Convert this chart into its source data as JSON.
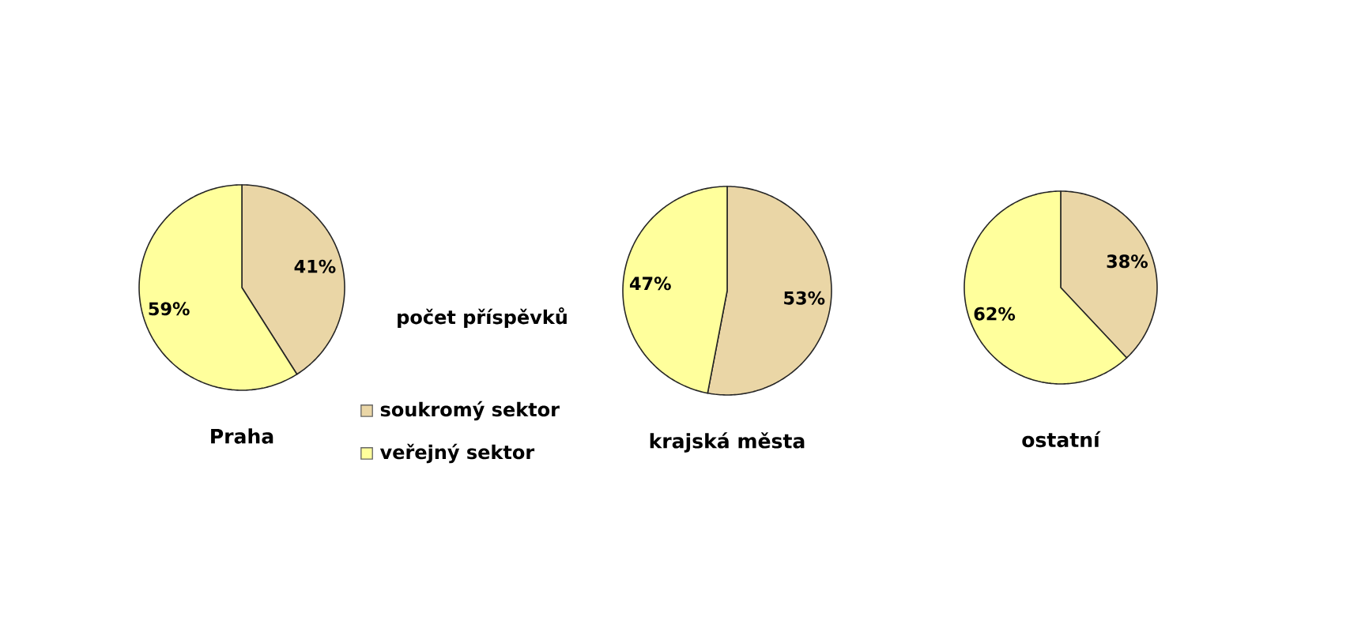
{
  "chart_data": [
    {
      "type": "pie",
      "title": "Praha",
      "categories": [
        "soukromý sektor",
        "veřejný sektor"
      ],
      "values": [
        41,
        59
      ],
      "value_labels": [
        "41%",
        "59%"
      ],
      "colors": [
        "#ead6a6",
        "#ffff9c"
      ],
      "legend": "right",
      "annotations": [
        "počet příspěvků"
      ]
    },
    {
      "type": "pie",
      "title": "krajská města",
      "categories": [
        null,
        null
      ],
      "values": [
        53,
        47
      ],
      "value_labels": [
        "53%",
        "47%"
      ],
      "colors": [
        "#ead6a6",
        "#ffff9c"
      ]
    },
    {
      "type": "pie",
      "title": "ostatní",
      "categories": [
        null,
        null
      ],
      "values": [
        38,
        62
      ],
      "value_labels": [
        "38%",
        "62%"
      ],
      "colors": [
        "#ead6a6",
        "#ffff9c"
      ]
    }
  ]
}
